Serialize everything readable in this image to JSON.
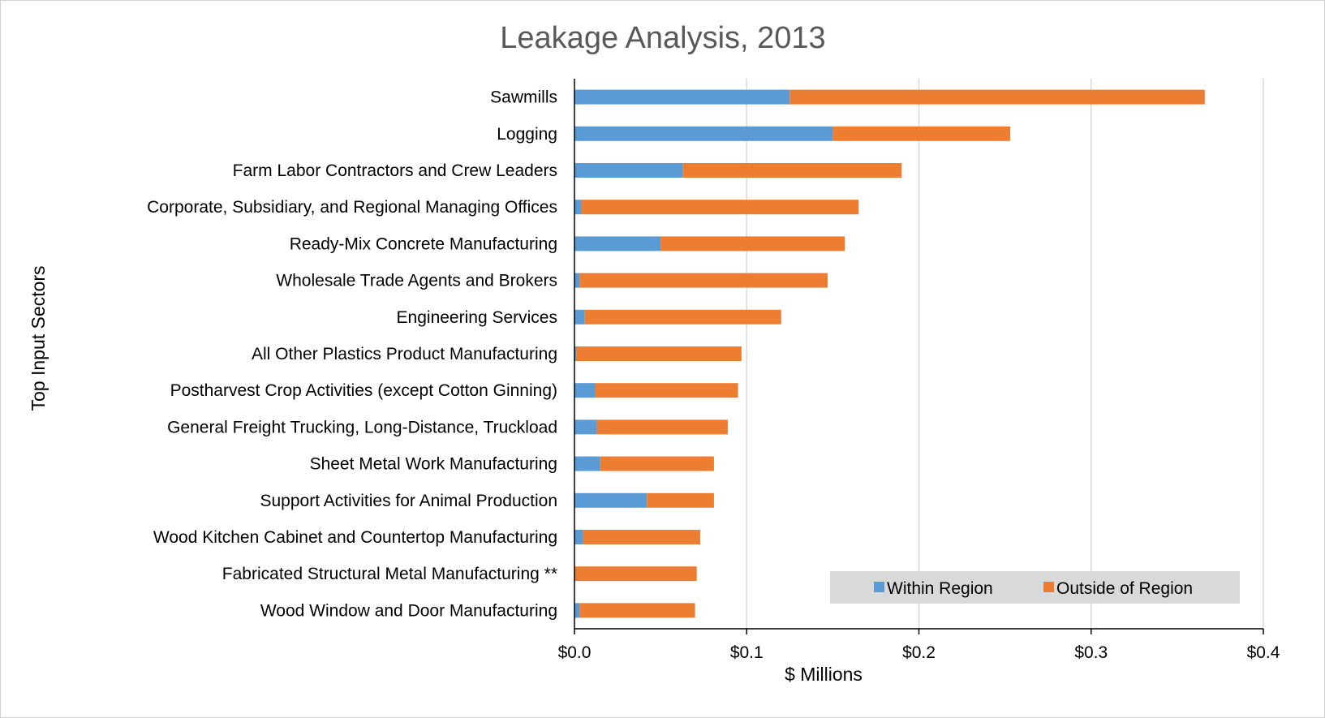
{
  "chart_data": {
    "type": "bar",
    "orientation": "horizontal",
    "stacked": true,
    "title": "Leakage Analysis, 2013",
    "xlabel": "$ Millions",
    "ylabel": "Top Input Sectors",
    "xlim": [
      0,
      0.4
    ],
    "xticks": [
      0,
      0.1,
      0.2,
      0.3,
      0.4
    ],
    "xtick_labels": [
      "$0.0",
      "$0.1",
      "$0.2",
      "$0.3",
      "$0.4"
    ],
    "grid": true,
    "legend_position": "bottom-right",
    "categories": [
      "Sawmills",
      "Logging",
      "Farm Labor Contractors and Crew Leaders",
      "Corporate, Subsidiary, and Regional Managing Offices",
      "Ready-Mix Concrete Manufacturing",
      "Wholesale Trade Agents and Brokers",
      "Engineering Services",
      "All Other Plastics Product Manufacturing",
      "Postharvest Crop Activities (except Cotton Ginning)",
      "General Freight Trucking, Long-Distance, Truckload",
      "Sheet Metal Work Manufacturing",
      "Support Activities for Animal Production",
      "Wood Kitchen Cabinet and Countertop Manufacturing",
      "Fabricated Structural Metal Manufacturing **",
      "Wood Window and Door Manufacturing"
    ],
    "series": [
      {
        "name": "Within Region",
        "color": "#5b9bd5",
        "values": [
          0.125,
          0.15,
          0.063,
          0.004,
          0.05,
          0.003,
          0.006,
          0.001,
          0.012,
          0.013,
          0.015,
          0.042,
          0.005,
          0.0,
          0.003
        ]
      },
      {
        "name": "Outside of Region",
        "color": "#ed7d31",
        "values": [
          0.241,
          0.103,
          0.127,
          0.161,
          0.107,
          0.144,
          0.114,
          0.096,
          0.083,
          0.076,
          0.066,
          0.039,
          0.068,
          0.071,
          0.067
        ]
      }
    ]
  }
}
